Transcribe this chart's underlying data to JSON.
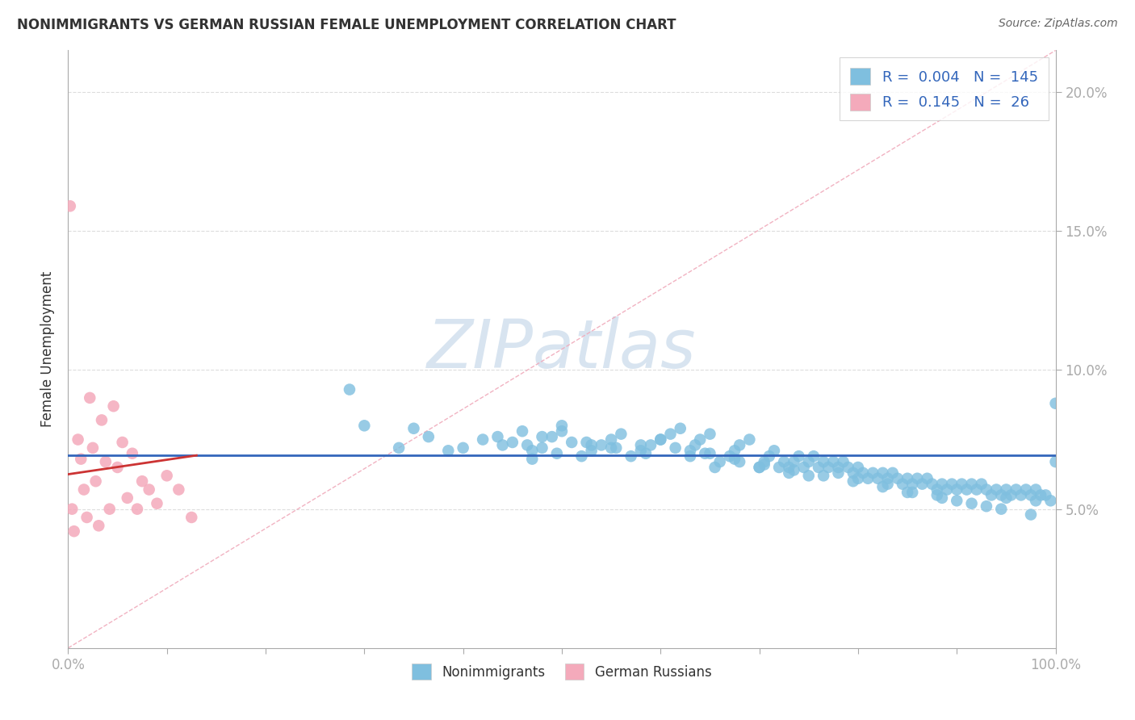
{
  "title": "NONIMMIGRANTS VS GERMAN RUSSIAN FEMALE UNEMPLOYMENT CORRELATION CHART",
  "source_text": "Source: ZipAtlas.com",
  "ylabel": "Female Unemployment",
  "legend_labels": [
    "Nonimmigrants",
    "German Russians"
  ],
  "legend_r": [
    0.004,
    0.145
  ],
  "legend_n": [
    145,
    26
  ],
  "xlim": [
    0.0,
    1.0
  ],
  "ylim": [
    0.0,
    0.215
  ],
  "x_ticks": [
    0.0,
    0.1,
    0.2,
    0.3,
    0.4,
    0.5,
    0.6,
    0.7,
    0.8,
    0.9,
    1.0
  ],
  "y_ticks": [
    0.05,
    0.1,
    0.15,
    0.2
  ],
  "y_tick_labels": [
    "5.0%",
    "10.0%",
    "15.0%",
    "20.0%"
  ],
  "blue_color": "#7FBFDF",
  "pink_color": "#F4AABB",
  "blue_line_color": "#3366BB",
  "pink_line_color": "#CC3333",
  "diagonal_line_color": "#F0AABB",
  "watermark_color": "#D8E4F0",
  "title_color": "#333333",
  "source_color": "#666666",
  "axis_color": "#AAAAAA",
  "grid_color": "#DDDDDD",
  "background_color": "#ffffff",
  "blue_scatter_x": [
    0.285,
    0.35,
    0.385,
    0.42,
    0.44,
    0.46,
    0.47,
    0.48,
    0.49,
    0.5,
    0.51,
    0.52,
    0.53,
    0.54,
    0.55,
    0.56,
    0.57,
    0.58,
    0.59,
    0.6,
    0.61,
    0.62,
    0.63,
    0.635,
    0.64,
    0.65,
    0.655,
    0.66,
    0.67,
    0.675,
    0.68,
    0.69,
    0.7,
    0.705,
    0.71,
    0.715,
    0.72,
    0.725,
    0.73,
    0.735,
    0.74,
    0.745,
    0.75,
    0.755,
    0.76,
    0.765,
    0.77,
    0.775,
    0.78,
    0.785,
    0.79,
    0.795,
    0.8,
    0.805,
    0.81,
    0.815,
    0.82,
    0.825,
    0.83,
    0.835,
    0.84,
    0.845,
    0.85,
    0.855,
    0.86,
    0.865,
    0.87,
    0.875,
    0.88,
    0.885,
    0.89,
    0.895,
    0.9,
    0.905,
    0.91,
    0.915,
    0.92,
    0.925,
    0.93,
    0.935,
    0.94,
    0.945,
    0.95,
    0.955,
    0.96,
    0.965,
    0.97,
    0.975,
    0.98,
    0.985,
    0.99,
    0.995,
    1.0,
    0.3,
    0.335,
    0.365,
    0.4,
    0.435,
    0.465,
    0.495,
    0.525,
    0.555,
    0.585,
    0.615,
    0.645,
    0.675,
    0.705,
    0.735,
    0.765,
    0.795,
    0.825,
    0.855,
    0.885,
    0.915,
    0.945,
    0.975,
    0.45,
    0.55,
    0.65,
    0.75,
    0.85,
    0.95,
    0.48,
    0.58,
    0.68,
    0.78,
    0.88,
    0.98,
    0.5,
    0.6,
    0.7,
    0.8,
    0.9,
    1.0,
    0.53,
    0.63,
    0.73,
    0.83,
    0.93,
    0.47
  ],
  "blue_scatter_y": [
    0.093,
    0.079,
    0.071,
    0.075,
    0.073,
    0.078,
    0.068,
    0.072,
    0.076,
    0.08,
    0.074,
    0.069,
    0.071,
    0.073,
    0.075,
    0.077,
    0.069,
    0.071,
    0.073,
    0.075,
    0.077,
    0.079,
    0.071,
    0.073,
    0.075,
    0.077,
    0.065,
    0.067,
    0.069,
    0.071,
    0.073,
    0.075,
    0.065,
    0.067,
    0.069,
    0.071,
    0.065,
    0.067,
    0.065,
    0.067,
    0.069,
    0.065,
    0.067,
    0.069,
    0.065,
    0.067,
    0.065,
    0.067,
    0.065,
    0.067,
    0.065,
    0.063,
    0.065,
    0.063,
    0.061,
    0.063,
    0.061,
    0.063,
    0.061,
    0.063,
    0.061,
    0.059,
    0.061,
    0.059,
    0.061,
    0.059,
    0.061,
    0.059,
    0.057,
    0.059,
    0.057,
    0.059,
    0.057,
    0.059,
    0.057,
    0.059,
    0.057,
    0.059,
    0.057,
    0.055,
    0.057,
    0.055,
    0.057,
    0.055,
    0.057,
    0.055,
    0.057,
    0.055,
    0.053,
    0.055,
    0.055,
    0.053,
    0.088,
    0.08,
    0.072,
    0.076,
    0.072,
    0.076,
    0.073,
    0.07,
    0.074,
    0.072,
    0.07,
    0.072,
    0.07,
    0.068,
    0.066,
    0.064,
    0.062,
    0.06,
    0.058,
    0.056,
    0.054,
    0.052,
    0.05,
    0.048,
    0.074,
    0.072,
    0.07,
    0.062,
    0.056,
    0.054,
    0.076,
    0.073,
    0.067,
    0.063,
    0.055,
    0.057,
    0.078,
    0.075,
    0.065,
    0.061,
    0.053,
    0.067,
    0.073,
    0.069,
    0.063,
    0.059,
    0.051,
    0.071
  ],
  "pink_scatter_x": [
    0.002,
    0.004,
    0.006,
    0.01,
    0.013,
    0.016,
    0.019,
    0.022,
    0.025,
    0.028,
    0.031,
    0.034,
    0.038,
    0.042,
    0.046,
    0.05,
    0.055,
    0.06,
    0.065,
    0.07,
    0.075,
    0.082,
    0.09,
    0.1,
    0.112,
    0.125
  ],
  "pink_scatter_y": [
    0.159,
    0.05,
    0.042,
    0.075,
    0.068,
    0.057,
    0.047,
    0.09,
    0.072,
    0.06,
    0.044,
    0.082,
    0.067,
    0.05,
    0.087,
    0.065,
    0.074,
    0.054,
    0.07,
    0.05,
    0.06,
    0.057,
    0.052,
    0.062,
    0.057,
    0.047
  ],
  "blue_trend_y_const": 0.0693,
  "pink_trend_x0": 0.0,
  "pink_trend_x1": 0.13,
  "pink_trend_y0": 0.0625,
  "pink_trend_y1": 0.0693
}
